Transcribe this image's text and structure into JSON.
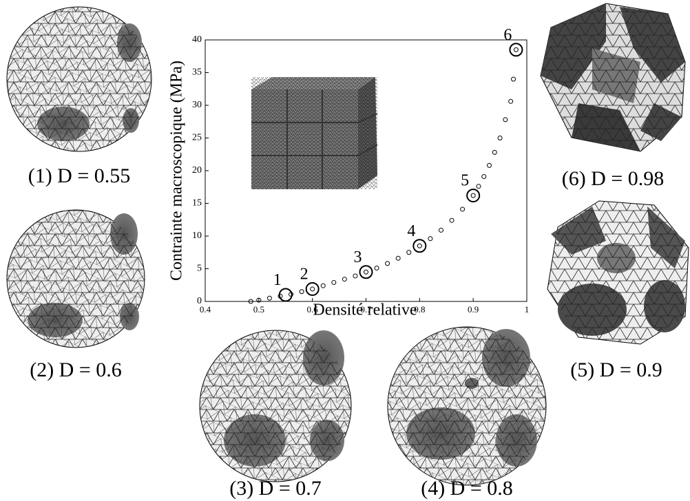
{
  "chart_data": {
    "type": "scatter",
    "xlabel": "Densité relative",
    "ylabel": "Contrainte macroscopique (MPa)",
    "xlim": [
      0.4,
      1
    ],
    "ylim": [
      0,
      40
    ],
    "xticks": [
      0.4,
      0.5,
      0.6,
      0.7,
      0.8,
      0.9,
      1
    ],
    "yticks": [
      0,
      5,
      10,
      15,
      20,
      25,
      30,
      35,
      40
    ],
    "color": "#000000",
    "x": [
      0.485,
      0.5,
      0.52,
      0.54,
      0.56,
      0.58,
      0.6,
      0.62,
      0.64,
      0.66,
      0.68,
      0.7,
      0.72,
      0.74,
      0.76,
      0.78,
      0.8,
      0.82,
      0.84,
      0.86,
      0.88,
      0.9,
      0.91,
      0.92,
      0.93,
      0.94,
      0.95,
      0.96,
      0.97,
      0.975,
      0.98
    ],
    "values": [
      0.0,
      0.2,
      0.5,
      0.8,
      1.1,
      1.5,
      1.9,
      2.4,
      2.9,
      3.4,
      3.9,
      4.5,
      5.1,
      5.8,
      6.6,
      7.5,
      8.5,
      9.6,
      10.9,
      12.4,
      14.1,
      16.2,
      17.6,
      19.1,
      20.8,
      22.8,
      25.0,
      27.8,
      30.6,
      34.0,
      38.5
    ],
    "highlights": {
      "labels": [
        "1",
        "2",
        "3",
        "4",
        "5",
        "6"
      ],
      "x": [
        0.55,
        0.6,
        0.7,
        0.8,
        0.9,
        0.98
      ],
      "values": [
        1.0,
        1.9,
        4.5,
        8.5,
        16.2,
        38.5
      ]
    }
  },
  "panels": [
    {
      "caption": "(1) D = 0.55"
    },
    {
      "caption": "(2) D = 0.6"
    },
    {
      "caption": "(3) D = 0.7"
    },
    {
      "caption": "(4) D = 0.8"
    },
    {
      "caption": "(5) D = 0.9"
    },
    {
      "caption": "(6) D = 0.98"
    }
  ]
}
